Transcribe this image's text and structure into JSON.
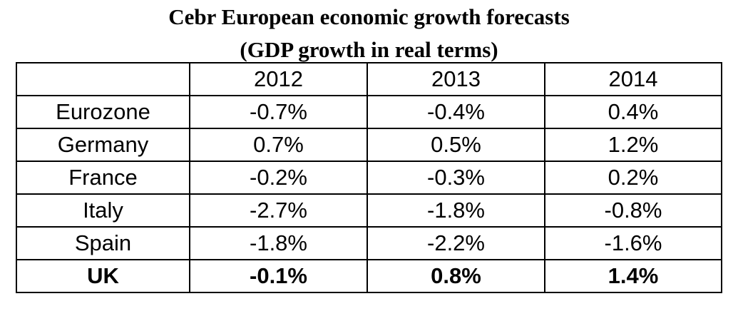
{
  "title_line1": "Cebr European economic growth forecasts",
  "title_line2": "(GDP growth in real terms)",
  "chart_data": {
    "type": "table",
    "columns": [
      "",
      "2012",
      "2013",
      "2014"
    ],
    "rows": [
      {
        "label": "Eurozone",
        "values": [
          "-0.7%",
          "-0.4%",
          "0.4%"
        ]
      },
      {
        "label": "Germany",
        "values": [
          "0.7%",
          "0.5%",
          "1.2%"
        ]
      },
      {
        "label": "France",
        "values": [
          "-0.2%",
          "-0.3%",
          "0.2%"
        ]
      },
      {
        "label": "Italy",
        "values": [
          "-2.7%",
          "-1.8%",
          "-0.8%"
        ]
      },
      {
        "label": "Spain",
        "values": [
          "-1.8%",
          "-2.2%",
          "-1.6%"
        ]
      },
      {
        "label": "UK",
        "values": [
          "-0.1%",
          "0.8%",
          "1.4%"
        ]
      }
    ]
  }
}
